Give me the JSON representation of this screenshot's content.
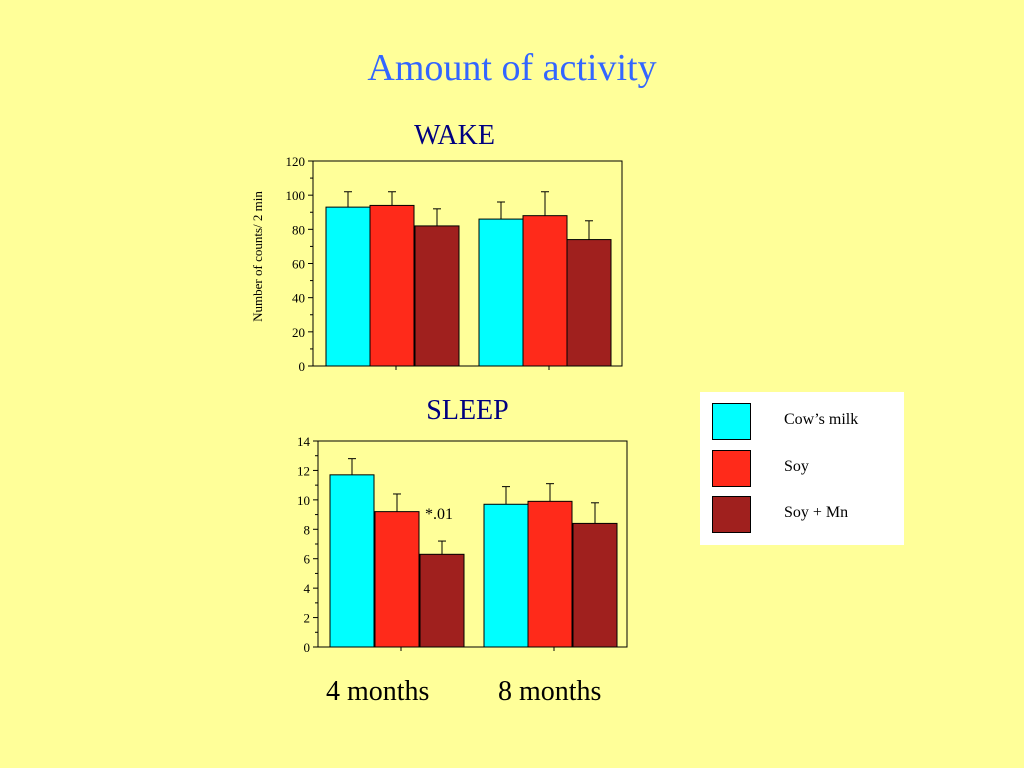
{
  "title": "Amount of activity",
  "colors": {
    "cow": "#00FFFF",
    "soy": "#FF2A1A",
    "soymn": "#A0201E",
    "title": "#3366FF",
    "panel": "#000080"
  },
  "legend": [
    {
      "name": "Cow’s milk",
      "color": "#00FFFF"
    },
    {
      "name": "Soy",
      "color": "#FF2A1A"
    },
    {
      "name": "Soy + Mn",
      "color": "#A0201E"
    }
  ],
  "group_labels": [
    "4 months",
    "8 months"
  ],
  "chart_data": [
    {
      "type": "bar",
      "title": "WAKE",
      "ylabel": "Number of counts/ 2 min",
      "categories": [
        "4 months",
        "8 months"
      ],
      "ylim": [
        0,
        120
      ],
      "yticks": [
        0,
        20,
        40,
        60,
        80,
        100,
        120
      ],
      "series": [
        {
          "name": "Cow’s milk",
          "values": [
            93,
            86
          ],
          "errors": [
            9,
            10
          ]
        },
        {
          "name": "Soy",
          "values": [
            94,
            88
          ],
          "errors": [
            8,
            14
          ]
        },
        {
          "name": "Soy + Mn",
          "values": [
            82,
            74
          ],
          "errors": [
            10,
            11
          ]
        }
      ],
      "annotations": []
    },
    {
      "type": "bar",
      "title": "SLEEP",
      "ylabel": "",
      "categories": [
        "4 months",
        "8 months"
      ],
      "ylim": [
        0,
        14
      ],
      "yticks": [
        0,
        2,
        4,
        6,
        8,
        10,
        12,
        14
      ],
      "series": [
        {
          "name": "Cow’s milk",
          "values": [
            11.7,
            9.7
          ],
          "errors": [
            1.1,
            1.2
          ]
        },
        {
          "name": "Soy",
          "values": [
            9.2,
            9.9
          ],
          "errors": [
            1.2,
            1.2
          ]
        },
        {
          "name": "Soy + Mn",
          "values": [
            6.3,
            8.4
          ],
          "errors": [
            0.9,
            1.4
          ]
        }
      ],
      "annotations": [
        {
          "text": "*.01",
          "series": 2,
          "category": 0
        }
      ]
    }
  ]
}
